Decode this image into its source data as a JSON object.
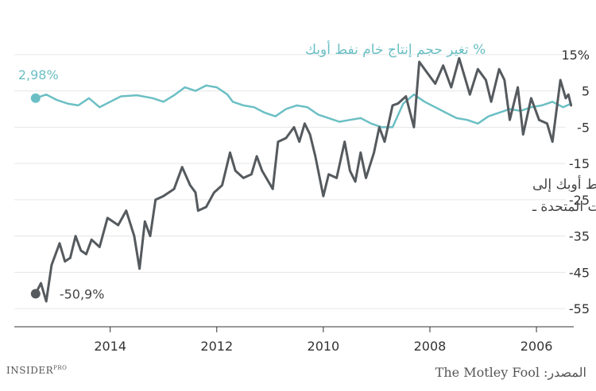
{
  "chart_data": {
    "type": "line",
    "x_axis": {
      "reversed": true,
      "range": [
        2005.3,
        2015.8
      ],
      "ticks": [
        "2014",
        "2012",
        "2010",
        "2008",
        "2006"
      ],
      "tick_values": [
        2014,
        2012,
        2010,
        2008,
        2006
      ]
    },
    "y_axis": {
      "range": [
        -60,
        20
      ],
      "ticks": [
        "15%",
        "5",
        "-5",
        "-15",
        "-25",
        "-35",
        "-45",
        "-55"
      ],
      "tick_values": [
        15,
        5,
        -5,
        -15,
        -25,
        -35,
        -45,
        -55
      ],
      "grid": true,
      "side": "right"
    },
    "series": [
      {
        "name": "% تغير حجم إنتاج خام نفط أوبك",
        "color": "#6bbfc4",
        "end_label": "2,98%",
        "end_value": 2.98,
        "points": [
          [
            2015.4,
            3.0
          ],
          [
            2015.2,
            4.0
          ],
          [
            2015.0,
            2.5
          ],
          [
            2014.8,
            1.5
          ],
          [
            2014.6,
            1.0
          ],
          [
            2014.4,
            3.0
          ],
          [
            2014.2,
            0.5
          ],
          [
            2014.0,
            2.0
          ],
          [
            2013.8,
            3.5
          ],
          [
            2013.5,
            3.8
          ],
          [
            2013.2,
            3.0
          ],
          [
            2013.0,
            2.0
          ],
          [
            2012.8,
            3.8
          ],
          [
            2012.6,
            6.0
          ],
          [
            2012.4,
            5.0
          ],
          [
            2012.2,
            6.5
          ],
          [
            2012.0,
            6.0
          ],
          [
            2011.8,
            4.0
          ],
          [
            2011.7,
            2.0
          ],
          [
            2011.5,
            1.0
          ],
          [
            2011.3,
            0.5
          ],
          [
            2011.1,
            -1.0
          ],
          [
            2010.9,
            -2.0
          ],
          [
            2010.7,
            0.0
          ],
          [
            2010.5,
            1.0
          ],
          [
            2010.3,
            0.5
          ],
          [
            2010.1,
            -1.5
          ],
          [
            2009.9,
            -2.5
          ],
          [
            2009.7,
            -3.5
          ],
          [
            2009.5,
            -3.0
          ],
          [
            2009.3,
            -2.5
          ],
          [
            2009.1,
            -4.0
          ],
          [
            2008.9,
            -5.0
          ],
          [
            2008.7,
            -5.0
          ],
          [
            2008.5,
            1.5
          ],
          [
            2008.3,
            4.0
          ],
          [
            2008.1,
            2.0
          ],
          [
            2007.9,
            0.5
          ],
          [
            2007.7,
            -1.0
          ],
          [
            2007.5,
            -2.5
          ],
          [
            2007.3,
            -3.0
          ],
          [
            2007.1,
            -4.0
          ],
          [
            2006.9,
            -2.0
          ],
          [
            2006.7,
            -1.0
          ],
          [
            2006.5,
            0.0
          ],
          [
            2006.3,
            -0.5
          ],
          [
            2006.1,
            0.5
          ],
          [
            2005.9,
            1.0
          ],
          [
            2005.7,
            2.0
          ],
          [
            2005.5,
            0.5
          ],
          [
            2005.35,
            1.5
          ]
        ]
      },
      {
        "name": "تغير حجم واردات نفط أوبك إلى الولايات المتحدة",
        "color": "#555a5e",
        "end_label": "-50,9%",
        "end_value": -50.9,
        "points": [
          [
            2015.4,
            -50.9
          ],
          [
            2015.3,
            -48.0
          ],
          [
            2015.2,
            -53.0
          ],
          [
            2015.1,
            -43.0
          ],
          [
            2014.95,
            -37.0
          ],
          [
            2014.85,
            -42.0
          ],
          [
            2014.75,
            -41.0
          ],
          [
            2014.65,
            -35.0
          ],
          [
            2014.55,
            -39.0
          ],
          [
            2014.45,
            -40.0
          ],
          [
            2014.35,
            -36.0
          ],
          [
            2014.2,
            -38.0
          ],
          [
            2014.05,
            -30.0
          ],
          [
            2013.85,
            -32.0
          ],
          [
            2013.7,
            -28.0
          ],
          [
            2013.55,
            -35.0
          ],
          [
            2013.45,
            -44.0
          ],
          [
            2013.35,
            -31.0
          ],
          [
            2013.25,
            -35.0
          ],
          [
            2013.15,
            -25.0
          ],
          [
            2013.0,
            -24.0
          ],
          [
            2012.8,
            -22.0
          ],
          [
            2012.65,
            -16.0
          ],
          [
            2012.5,
            -21.0
          ],
          [
            2012.4,
            -23.0
          ],
          [
            2012.35,
            -28.0
          ],
          [
            2012.2,
            -27.0
          ],
          [
            2012.05,
            -23.0
          ],
          [
            2011.9,
            -21.0
          ],
          [
            2011.75,
            -12.0
          ],
          [
            2011.65,
            -17.0
          ],
          [
            2011.5,
            -19.0
          ],
          [
            2011.35,
            -18.0
          ],
          [
            2011.25,
            -13.0
          ],
          [
            2011.15,
            -17.0
          ],
          [
            2010.95,
            -22.0
          ],
          [
            2010.85,
            -9.0
          ],
          [
            2010.7,
            -8.0
          ],
          [
            2010.55,
            -5.0
          ],
          [
            2010.45,
            -9.0
          ],
          [
            2010.35,
            -4.0
          ],
          [
            2010.25,
            -7.0
          ],
          [
            2010.15,
            -13.0
          ],
          [
            2010.0,
            -24.0
          ],
          [
            2009.9,
            -18.0
          ],
          [
            2009.75,
            -19.0
          ],
          [
            2009.6,
            -9.0
          ],
          [
            2009.5,
            -17.0
          ],
          [
            2009.4,
            -20.0
          ],
          [
            2009.3,
            -12.0
          ],
          [
            2009.2,
            -19.0
          ],
          [
            2009.05,
            -12.0
          ],
          [
            2008.95,
            -5.0
          ],
          [
            2008.85,
            -9.0
          ],
          [
            2008.7,
            1.0
          ],
          [
            2008.6,
            1.5
          ],
          [
            2008.45,
            3.5
          ],
          [
            2008.3,
            -5.0
          ],
          [
            2008.2,
            13.0
          ],
          [
            2008.05,
            10.0
          ],
          [
            2007.9,
            7.0
          ],
          [
            2007.75,
            12.0
          ],
          [
            2007.6,
            6.0
          ],
          [
            2007.45,
            14.0
          ],
          [
            2007.35,
            9.0
          ],
          [
            2007.25,
            4.0
          ],
          [
            2007.1,
            11.0
          ],
          [
            2006.95,
            8.0
          ],
          [
            2006.85,
            2.0
          ],
          [
            2006.7,
            11.0
          ],
          [
            2006.6,
            8.0
          ],
          [
            2006.5,
            -3.0
          ],
          [
            2006.35,
            6.0
          ],
          [
            2006.25,
            -7.0
          ],
          [
            2006.1,
            3.0
          ],
          [
            2005.95,
            -3.0
          ],
          [
            2005.8,
            -4.0
          ],
          [
            2005.7,
            -9.0
          ],
          [
            2005.55,
            8.0
          ],
          [
            2005.45,
            3.0
          ],
          [
            2005.4,
            4.0
          ],
          [
            2005.35,
            1.0
          ]
        ]
      }
    ],
    "annotations": {
      "production_label": "% تغير حجم إنتاج خام نفط أوبك",
      "imports_label_line1": "تغير حجم واردات نفط أوبك إلى",
      "imports_label_line2": "% الولايات المتحدة ـ"
    }
  },
  "footer": {
    "brand_main": "INSIDER",
    "brand_sup": "PRO",
    "source": "المصدر: The Motley Fool"
  }
}
